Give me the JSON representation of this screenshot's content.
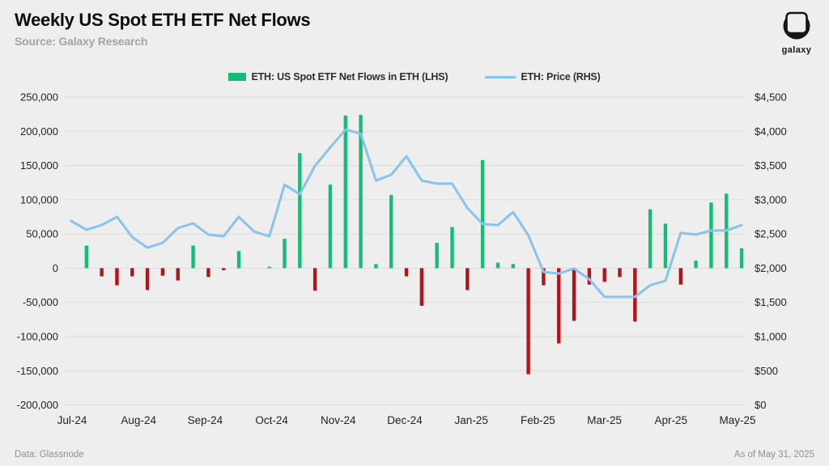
{
  "header": {
    "title": "Weekly US Spot ETH ETF Net Flows",
    "source": "Source: Galaxy Research"
  },
  "logo": {
    "label": "galaxy"
  },
  "legend": {
    "flows_label": "ETH: US Spot ETF Net Flows in ETH (LHS)",
    "price_label": "ETH: Price (RHS)"
  },
  "footer": {
    "left": "Data: Glassnode",
    "right": "As of May 31, 2025"
  },
  "colors": {
    "background": "#eeeeee",
    "bar_positive": "#16bc74",
    "bar_negative": "#b11519",
    "price_line": "#87c3eb",
    "gridline": "#dcdcdc",
    "axis_text": "#222222"
  },
  "chart_data": {
    "type": "bar",
    "title": "Weekly US Spot ETH ETF Net Flows",
    "x_axis": {
      "labels": [
        "Jul-24",
        "Aug-24",
        "Sep-24",
        "Oct-24",
        "Nov-24",
        "Dec-24",
        "Jan-25",
        "Feb-25",
        "Mar-25",
        "Apr-25",
        "May-25"
      ]
    },
    "left_axis": {
      "label": "ETH: US Spot ETF Net Flows in ETH (LHS)",
      "min": -200000,
      "max": 250000,
      "step": 50000,
      "tick_labels": [
        "250,000",
        "200,000",
        "150,000",
        "100,000",
        "50,000",
        "0",
        "-50,000",
        "-100,000",
        "-150,000",
        "-200,000"
      ]
    },
    "right_axis": {
      "label": "ETH: Price (RHS)",
      "min": 0,
      "max": 4500,
      "step": 500,
      "tick_labels": [
        "$4,500",
        "$4,000",
        "$3,500",
        "$3,000",
        "$2,500",
        "$2,000",
        "$1,500",
        "$1,000",
        "$500",
        "$0"
      ]
    },
    "grid": true,
    "legend_position": "top-center",
    "series": [
      {
        "name": "ETH: US Spot ETF Net Flows in ETH (LHS)",
        "type": "bar",
        "axis": "left",
        "start_week": 1,
        "values": [
          33000,
          -12000,
          -25000,
          -12000,
          -32000,
          -11000,
          -18000,
          33000,
          -13000,
          -3000,
          25000,
          0,
          2000,
          43000,
          168000,
          -33000,
          122000,
          223000,
          224000,
          6000,
          107000,
          -12000,
          -55000,
          37000,
          60000,
          -32000,
          158000,
          8000,
          6000,
          -155000,
          -25000,
          -110000,
          -77000,
          -24000,
          -20000,
          -13000,
          -78000,
          86000,
          65000,
          -24000,
          11000,
          96000,
          109000,
          29000
        ]
      },
      {
        "name": "ETH: Price (RHS)",
        "type": "line",
        "axis": "right",
        "start_week": 0,
        "values": [
          2690,
          2560,
          2630,
          2750,
          2455,
          2300,
          2370,
          2585,
          2655,
          2490,
          2465,
          2750,
          2535,
          2465,
          3220,
          3080,
          3495,
          3765,
          4025,
          3965,
          3280,
          3365,
          3635,
          3280,
          3235,
          3235,
          2880,
          2645,
          2630,
          2820,
          2480,
          1945,
          1920,
          1995,
          1840,
          1580,
          1580,
          1580,
          1750,
          1815,
          2515,
          2490,
          2550,
          2550,
          2630
        ]
      }
    ]
  }
}
